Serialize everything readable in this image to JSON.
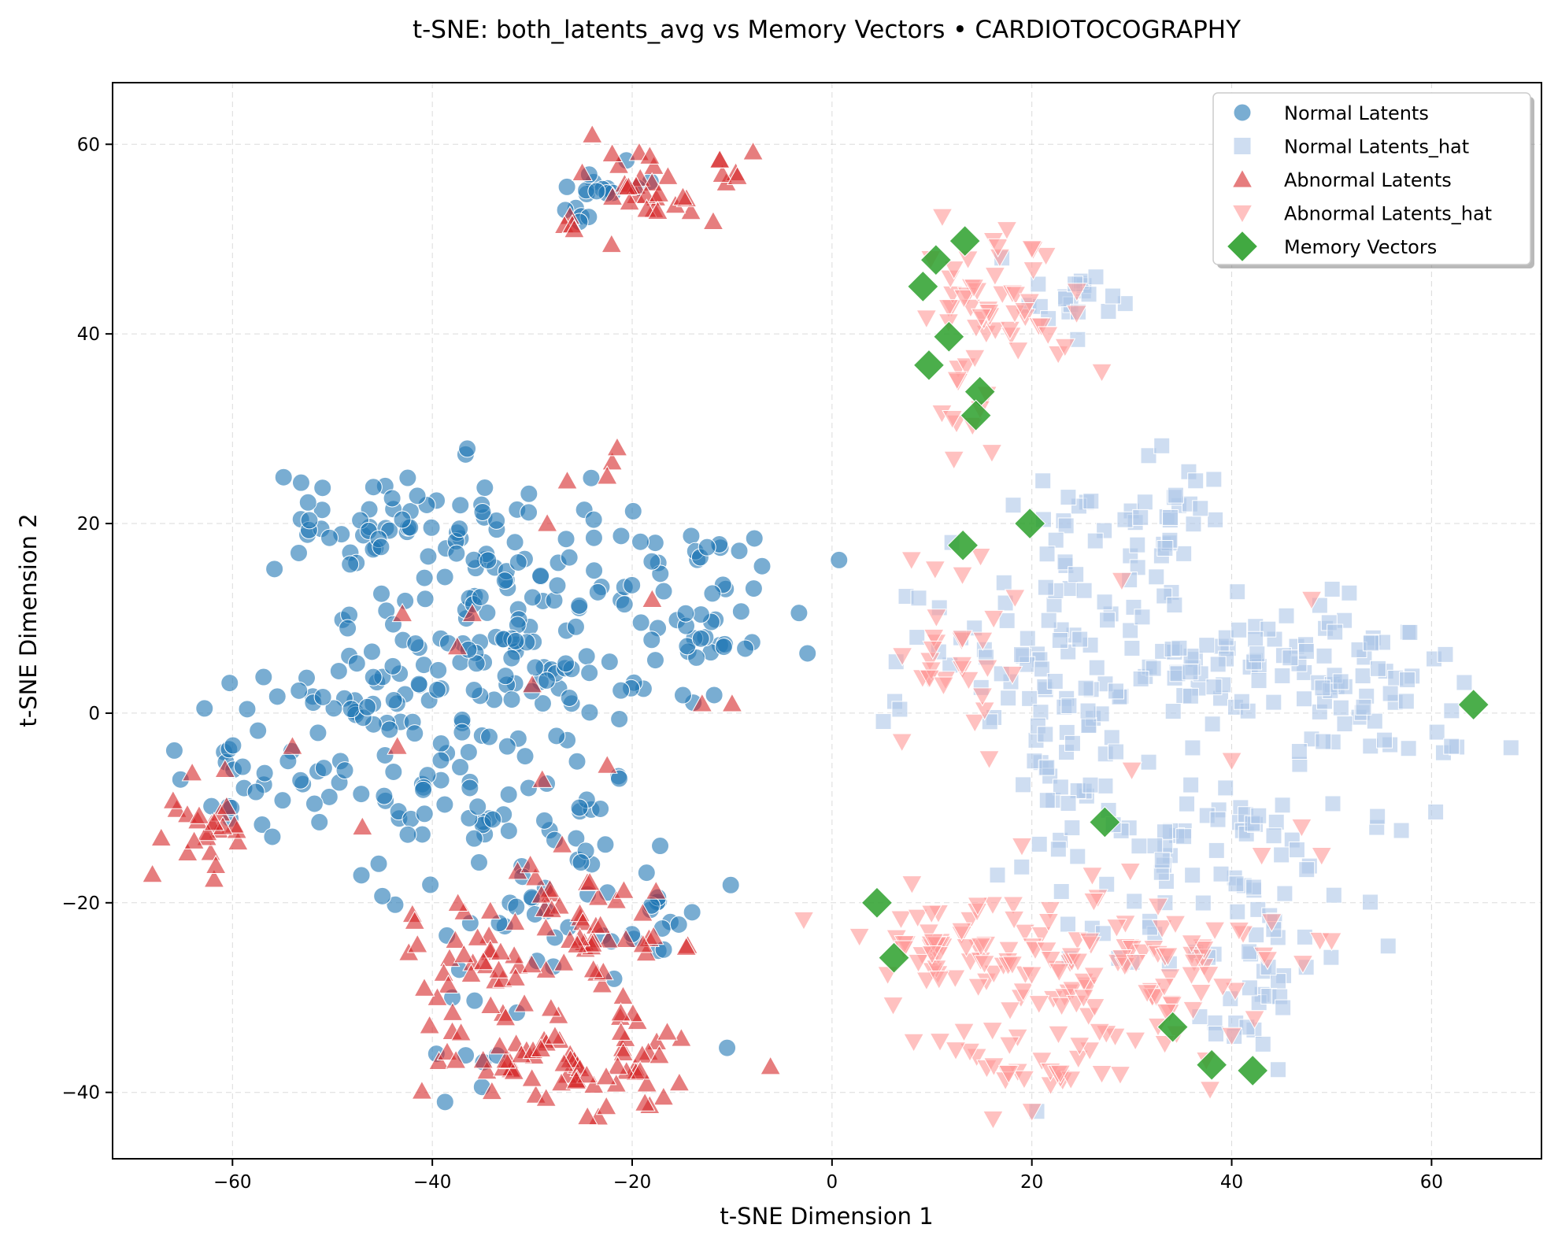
{
  "chart_data": {
    "type": "scatter",
    "title": "t-SNE: both_latents_avg vs Memory Vectors • CARDIOTOCOGRAPHY",
    "xlabel": "t-SNE Dimension 1",
    "ylabel": "t-SNE Dimension 2",
    "xlim": [
      -72,
      71
    ],
    "ylim": [
      -47,
      66.5
    ],
    "xticks": [
      -60,
      -40,
      -20,
      0,
      20,
      40,
      60
    ],
    "yticks": [
      -40,
      -20,
      0,
      20,
      40,
      60
    ],
    "xtick_labels": [
      "−60",
      "−40",
      "−20",
      "0",
      "20",
      "40",
      "60"
    ],
    "ytick_labels": [
      "−40",
      "−20",
      "0",
      "20",
      "40",
      "60"
    ],
    "grid": true,
    "legend_position": "top-right",
    "series": [
      {
        "name": "Normal Latents",
        "marker": "circle",
        "color": "#1f77b4",
        "opacity": 0.6,
        "clusters": [
          {
            "center": [
              -46,
              20
            ],
            "spread": [
              6,
              3
            ],
            "count": 45
          },
          {
            "center": [
              -32,
              14
            ],
            "spread": [
              7,
              5
            ],
            "count": 70
          },
          {
            "center": [
              -14,
              11
            ],
            "spread": [
              5,
              4
            ],
            "count": 45
          },
          {
            "center": [
              -40,
              6
            ],
            "spread": [
              8,
              5
            ],
            "count": 40
          },
          {
            "center": [
              -50,
              -1
            ],
            "spread": [
              5,
              4
            ],
            "count": 35
          },
          {
            "center": [
              -30,
              3
            ],
            "spread": [
              7,
              5
            ],
            "count": 45
          },
          {
            "center": [
              -40,
              -8
            ],
            "spread": [
              5,
              4
            ],
            "count": 35
          },
          {
            "center": [
              -58,
              -9
            ],
            "spread": [
              3,
              3
            ],
            "count": 20
          },
          {
            "center": [
              -27,
              -13
            ],
            "spread": [
              5,
              4
            ],
            "count": 20
          },
          {
            "center": [
              -24,
              55
            ],
            "spread": [
              2,
              2
            ],
            "count": 18
          },
          {
            "center": [
              -30,
              -22
            ],
            "spread": [
              8,
              3
            ],
            "count": 25
          },
          {
            "center": [
              -17,
              -22
            ],
            "spread": [
              3,
              3
            ],
            "count": 12
          },
          {
            "center": [
              -35,
              -36
            ],
            "spread": [
              3,
              3
            ],
            "count": 8
          }
        ],
        "points": [
          [
            -55.8,
            15.2
          ],
          [
            -36.5,
            27.9
          ],
          [
            -19.9,
            21.3
          ],
          [
            -7.0,
            15.5
          ],
          [
            -12.5,
            17.5
          ],
          [
            -62.8,
            0.5
          ],
          [
            -65.2,
            -7.0
          ],
          [
            -51.3,
            -11.5
          ],
          [
            -24.1,
            24.8
          ],
          [
            -47.1,
            -17.1
          ],
          [
            -45.0,
            -19.3
          ],
          [
            -40.2,
            -18.1
          ],
          [
            -34.3,
            -2.5
          ],
          [
            -21.3,
            -6.9
          ],
          [
            -17.2,
            -14.0
          ],
          [
            -10.5,
            -35.3
          ],
          [
            -14.0,
            -21.0
          ],
          [
            -38.0,
            -30.0
          ]
        ]
      },
      {
        "name": "Normal Latents_hat",
        "marker": "square",
        "color": "#aec7e8",
        "opacity": 0.6,
        "clusters": [
          {
            "center": [
              30,
              20
            ],
            "spread": [
              6,
              3
            ],
            "count": 45
          },
          {
            "center": [
              26,
              11
            ],
            "spread": [
              4,
              3
            ],
            "count": 20
          },
          {
            "center": [
              14,
              6
            ],
            "spread": [
              4,
              4
            ],
            "count": 25
          },
          {
            "center": [
              25,
              2
            ],
            "spread": [
              5,
              4
            ],
            "count": 40
          },
          {
            "center": [
              40,
              5
            ],
            "spread": [
              6,
              4
            ],
            "count": 55
          },
          {
            "center": [
              53,
              2
            ],
            "spread": [
              6,
              5
            ],
            "count": 60
          },
          {
            "center": [
              35,
              -13
            ],
            "spread": [
              5,
              4
            ],
            "count": 35
          },
          {
            "center": [
              23,
              -10
            ],
            "spread": [
              3,
              3
            ],
            "count": 20
          },
          {
            "center": [
              46,
              -13
            ],
            "spread": [
              4,
              3
            ],
            "count": 20
          },
          {
            "center": [
              44,
              -26
            ],
            "spread": [
              4,
              3
            ],
            "count": 25
          },
          {
            "center": [
              30,
              -24
            ],
            "spread": [
              4,
              3
            ],
            "count": 15
          },
          {
            "center": [
              24,
              43
            ],
            "spread": [
              3,
              2
            ],
            "count": 20
          },
          {
            "center": [
              40,
              -33
            ],
            "spread": [
              2,
              2
            ],
            "count": 10
          }
        ],
        "points": [
          [
            33.0,
            28.2
          ],
          [
            20.5,
            -42.0
          ],
          [
            47.5,
            -16.5
          ],
          [
            17.0,
            48.0
          ],
          [
            12.0,
            18.0
          ],
          [
            62.0,
            -3.5
          ],
          [
            8.5,
            8.0
          ]
        ]
      },
      {
        "name": "Abnormal Latents",
        "marker": "triangle-up",
        "color": "#d62728",
        "opacity": 0.6,
        "clusters": [
          {
            "center": [
              -17,
              55
            ],
            "spread": [
              4,
              3
            ],
            "count": 35
          },
          {
            "center": [
              -30,
              -36
            ],
            "spread": [
              6,
              3
            ],
            "count": 55
          },
          {
            "center": [
              -19,
              -37
            ],
            "spread": [
              4,
              3
            ],
            "count": 20
          },
          {
            "center": [
              -25,
              -22
            ],
            "spread": [
              5,
              4
            ],
            "count": 45
          },
          {
            "center": [
              -38,
              -23
            ],
            "spread": [
              3,
              3
            ],
            "count": 15
          },
          {
            "center": [
              -62,
              -13
            ],
            "spread": [
              2.5,
              2.5
            ],
            "count": 25
          },
          {
            "center": [
              -31,
              -29
            ],
            "spread": [
              5,
              3
            ],
            "count": 20
          }
        ],
        "points": [
          [
            -22.0,
            26.5
          ],
          [
            -22.5,
            25.0
          ],
          [
            -21.5,
            28.0
          ],
          [
            -26.5,
            24.5
          ],
          [
            -28.5,
            20.0
          ],
          [
            -43.0,
            10.5
          ],
          [
            -37.5,
            7.0
          ],
          [
            -36.0,
            10.5
          ],
          [
            -18.0,
            12.0
          ],
          [
            -10.0,
            1.0
          ],
          [
            -13.0,
            1.0
          ],
          [
            -30.0,
            3.0
          ],
          [
            -43.5,
            -3.5
          ],
          [
            -54.0,
            -3.5
          ],
          [
            -22.5,
            -5.5
          ],
          [
            -47.0,
            -12.0
          ],
          [
            -29.0,
            -7.0
          ],
          [
            -25.0,
            57.0
          ],
          [
            -24.0,
            61.0
          ],
          [
            -22.0,
            59.0
          ],
          [
            -26.0,
            51.5
          ],
          [
            -25.8,
            51.0
          ],
          [
            -39.5,
            -30.0
          ],
          [
            -40.8,
            -29.0
          ]
        ]
      },
      {
        "name": "Abnormal Latents_hat",
        "marker": "triangle-down",
        "color": "#ff9896",
        "opacity": 0.6,
        "clusters": [
          {
            "center": [
              15,
              45
            ],
            "spread": [
              3,
              3
            ],
            "count": 35
          },
          {
            "center": [
              21,
              40
            ],
            "spread": [
              3,
              2
            ],
            "count": 12
          },
          {
            "center": [
              14,
              33
            ],
            "spread": [
              1.5,
              3
            ],
            "count": 12
          },
          {
            "center": [
              12,
              6
            ],
            "spread": [
              3,
              5
            ],
            "count": 30
          },
          {
            "center": [
              16,
              -25
            ],
            "spread": [
              6,
              3
            ],
            "count": 50
          },
          {
            "center": [
              27,
              -28
            ],
            "spread": [
              6,
              4
            ],
            "count": 50
          },
          {
            "center": [
              36,
              -26
            ],
            "spread": [
              6,
              3
            ],
            "count": 35
          },
          {
            "center": [
              22,
              -36
            ],
            "spread": [
              6,
              3
            ],
            "count": 35
          },
          {
            "center": [
              9,
              -26
            ],
            "spread": [
              2,
              3
            ],
            "count": 15
          }
        ],
        "points": [
          [
            17.5,
            51.0
          ],
          [
            20.0,
            49.0
          ],
          [
            27.0,
            36.0
          ],
          [
            48.0,
            12.0
          ],
          [
            40.0,
            -5.0
          ],
          [
            43.0,
            -15.0
          ],
          [
            47.0,
            -12.0
          ],
          [
            49.0,
            -15.0
          ],
          [
            30.0,
            -6.0
          ],
          [
            19.0,
            -14.0
          ],
          [
            8.0,
            -18.0
          ],
          [
            7.0,
            -3.0
          ],
          [
            16.0,
            27.5
          ],
          [
            24.5,
            44.5
          ],
          [
            27.0,
            -38.0
          ],
          [
            29.0,
            14.0
          ],
          [
            20.0,
            -42.0
          ],
          [
            50.0,
            -24.0
          ],
          [
            44.0,
            -22.0
          ],
          [
            40.0,
            -34.0
          ]
        ]
      },
      {
        "name": "Memory Vectors",
        "marker": "diamond",
        "color": "#2ca02c",
        "opacity": 0.85,
        "clusters": [],
        "points": [
          [
            13.3,
            49.8
          ],
          [
            10.4,
            47.8
          ],
          [
            9.1,
            45.0
          ],
          [
            11.7,
            39.7
          ],
          [
            9.7,
            36.7
          ],
          [
            14.8,
            33.9
          ],
          [
            14.4,
            31.4
          ],
          [
            19.8,
            20.0
          ],
          [
            13.1,
            17.7
          ],
          [
            64.2,
            0.9
          ],
          [
            27.3,
            -11.5
          ],
          [
            4.5,
            -20.0
          ],
          [
            6.2,
            -25.8
          ],
          [
            34.1,
            -33.1
          ],
          [
            38.0,
            -37.1
          ],
          [
            42.1,
            -37.7
          ]
        ]
      }
    ]
  }
}
